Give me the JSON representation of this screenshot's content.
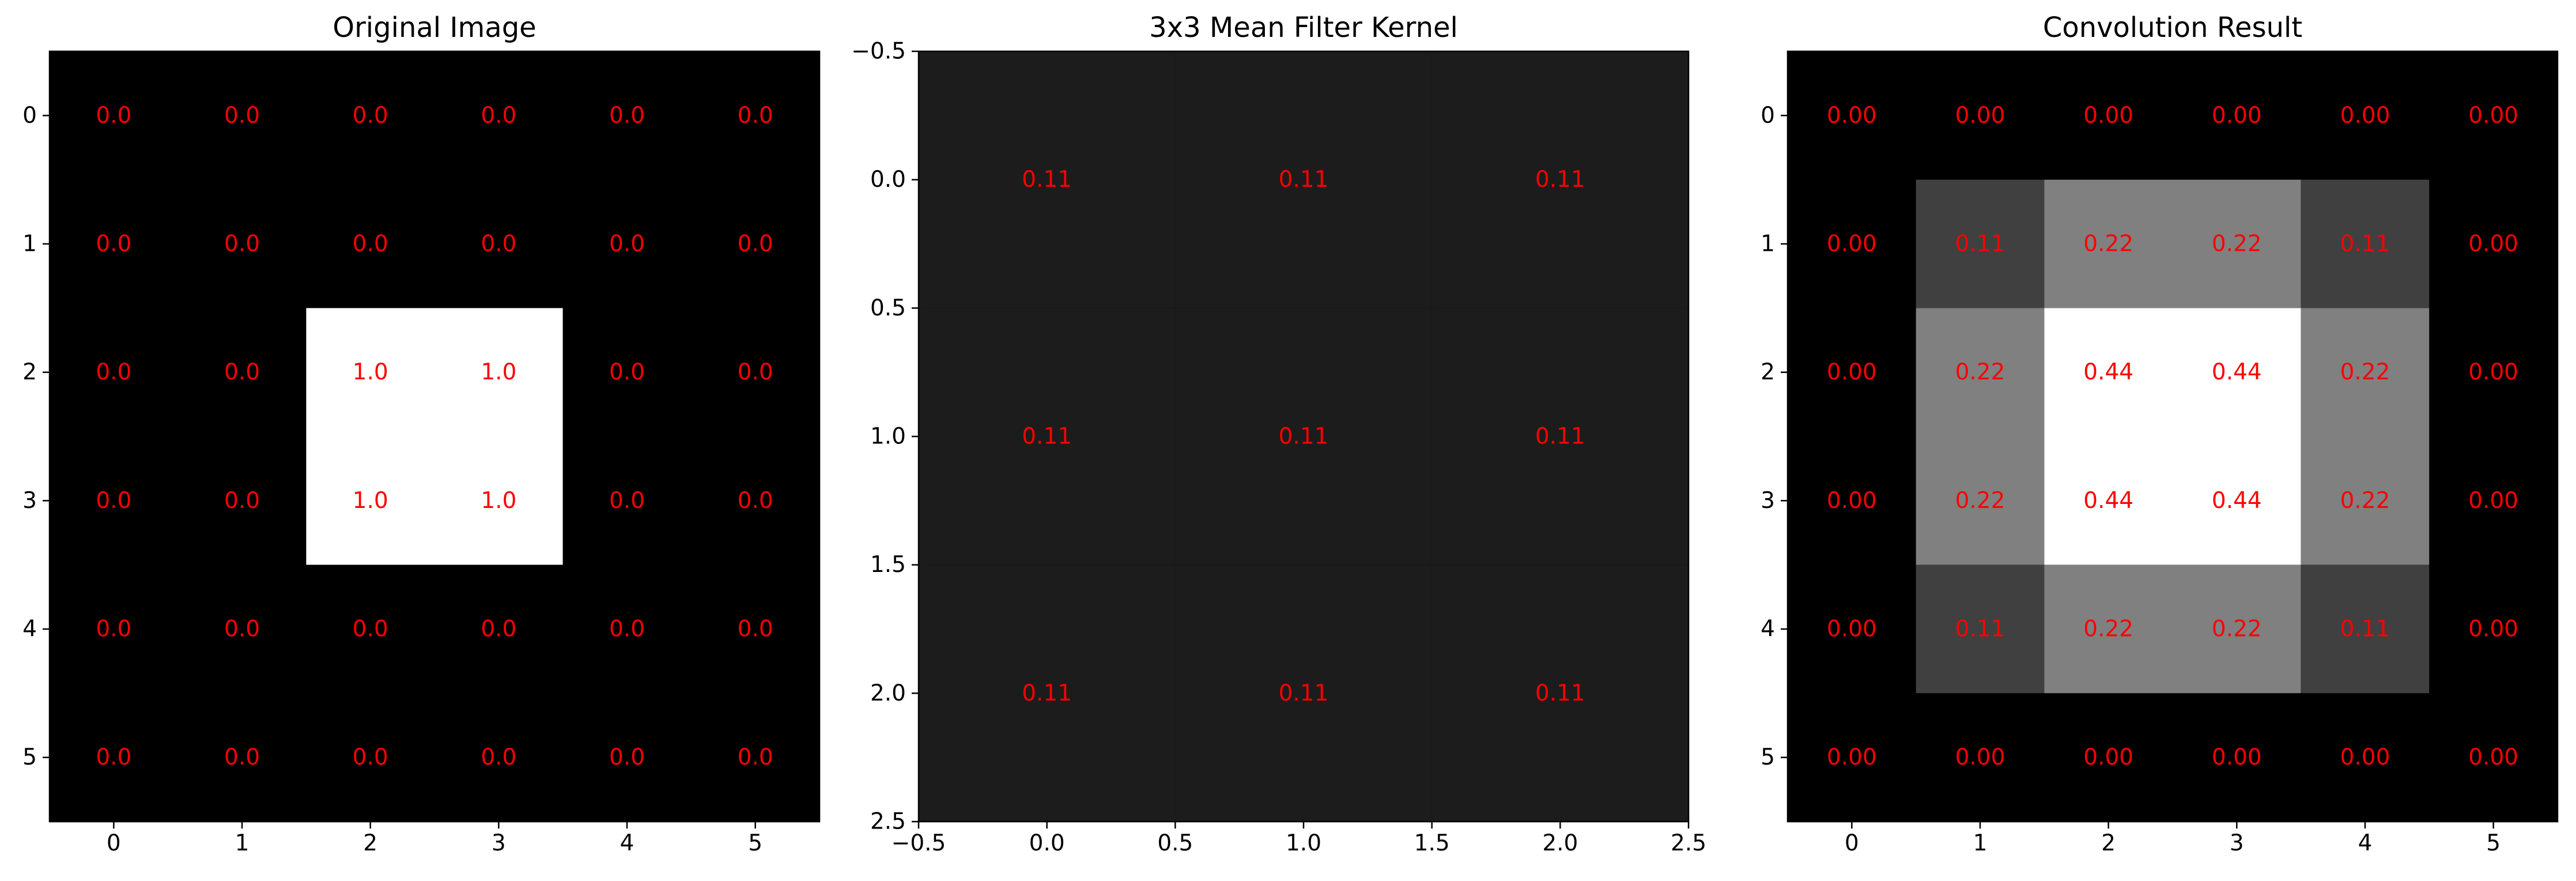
{
  "chart_data": [
    {
      "type": "heatmap",
      "title": "Original Image",
      "colormap": "gray",
      "vmin": 0,
      "vmax": 1,
      "label_color": "#ff0000",
      "label_format": "1",
      "x_ticks": [
        "0",
        "1",
        "2",
        "3",
        "4",
        "5"
      ],
      "y_ticks": [
        "0",
        "1",
        "2",
        "3",
        "4",
        "5"
      ],
      "xlim": [
        -0.5,
        5.5
      ],
      "ylim": [
        5.5,
        -0.5
      ],
      "values": [
        [
          0,
          0,
          0,
          0,
          0,
          0
        ],
        [
          0,
          0,
          0,
          0,
          0,
          0
        ],
        [
          0,
          0,
          1,
          1,
          0,
          0
        ],
        [
          0,
          0,
          1,
          1,
          0,
          0
        ],
        [
          0,
          0,
          0,
          0,
          0,
          0
        ],
        [
          0,
          0,
          0,
          0,
          0,
          0
        ]
      ]
    },
    {
      "type": "heatmap",
      "title": "3x3 Mean Filter Kernel",
      "colormap": "gray",
      "vmin": 0,
      "vmax": 1,
      "label_color": "#ff0000",
      "label_format": "2",
      "x_ticks": [
        "−0.5",
        "0.0",
        "0.5",
        "1.0",
        "1.5",
        "2.0",
        "2.5"
      ],
      "y_ticks": [
        "−0.5",
        "0.0",
        "0.5",
        "1.0",
        "1.5",
        "2.0",
        "2.5"
      ],
      "xlim": [
        -0.5,
        2.5
      ],
      "ylim": [
        2.5,
        -0.5
      ],
      "values": [
        [
          0.11,
          0.11,
          0.11
        ],
        [
          0.11,
          0.11,
          0.11
        ],
        [
          0.11,
          0.11,
          0.11
        ]
      ]
    },
    {
      "type": "heatmap",
      "title": "Convolution Result",
      "colormap": "gray",
      "vmin": 0,
      "vmax": 0.44,
      "label_color": "#ff0000",
      "label_format": "2",
      "x_ticks": [
        "0",
        "1",
        "2",
        "3",
        "4",
        "5"
      ],
      "y_ticks": [
        "0",
        "1",
        "2",
        "3",
        "4",
        "5"
      ],
      "xlim": [
        -0.5,
        5.5
      ],
      "ylim": [
        5.5,
        -0.5
      ],
      "values": [
        [
          0.0,
          0.0,
          0.0,
          0.0,
          0.0,
          0.0
        ],
        [
          0.0,
          0.11,
          0.22,
          0.22,
          0.11,
          0.0
        ],
        [
          0.0,
          0.22,
          0.44,
          0.44,
          0.22,
          0.0
        ],
        [
          0.0,
          0.22,
          0.44,
          0.44,
          0.22,
          0.0
        ],
        [
          0.0,
          0.11,
          0.22,
          0.22,
          0.11,
          0.0
        ],
        [
          0.0,
          0.0,
          0.0,
          0.0,
          0.0,
          0.0
        ]
      ]
    }
  ]
}
